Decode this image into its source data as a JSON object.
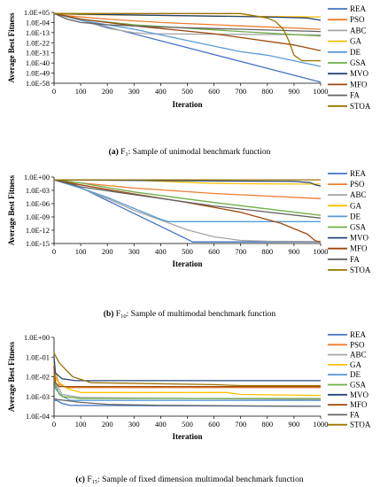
{
  "legend_series": [
    "REA",
    "PSO",
    "ABC",
    "GA",
    "DE",
    "GSA",
    "MVO",
    "MFO",
    "FA",
    "STOA"
  ],
  "colors": {
    "REA": "#4472c4",
    "PSO": "#ed7d31",
    "ABC": "#a5a5a5",
    "GA": "#ffc000",
    "DE": "#5b9bd5",
    "GSA": "#70ad47",
    "MVO": "#264478",
    "MFO": "#9e480e",
    "FA": "#636363",
    "STOA": "#997300"
  },
  "captions": [
    {
      "prefix": "(a)",
      "func": "F",
      "sub": "1",
      "text": ": Sample of unimodal benchmark function"
    },
    {
      "prefix": "(b)",
      "func": "F",
      "sub": "10",
      "text": ": Sample of multimodal benchmark function"
    },
    {
      "prefix": "(c)",
      "func": "F",
      "sub": "15",
      "text": ": Sample of fixed dimension multimodal benchmark function"
    }
  ],
  "chart_data": [
    {
      "type": "line",
      "xlabel": "Iteration",
      "ylabel": "Average Best Fitness",
      "yscale": "log",
      "xlim": [
        0,
        1000
      ],
      "ylim_exp": [
        -58,
        5
      ],
      "xticks": [
        "0",
        "100",
        "200",
        "300",
        "400",
        "500",
        "600",
        "700",
        "800",
        "900",
        "1000"
      ],
      "yticks": [
        "1.0E+05",
        "1.0E-04",
        "1.0E-13",
        "1.0E-22",
        "1.0E-31",
        "1.0E-40",
        "1.0E-49",
        "1.0E-58"
      ],
      "series": [
        {
          "name": "REA",
          "x": [
            0,
            20,
            1000
          ],
          "log10_y": [
            4,
            3,
            -57
          ]
        },
        {
          "name": "PSO",
          "x": [
            0,
            50,
            200,
            400,
            700,
            1000
          ],
          "log10_y": [
            4,
            2,
            -1,
            -4,
            -7,
            -10
          ]
        },
        {
          "name": "ABC",
          "x": [
            0,
            100,
            200,
            300,
            350,
            1000
          ],
          "log10_y": [
            4,
            -2,
            -9,
            -13,
            -14,
            -15
          ]
        },
        {
          "name": "GA",
          "x": [
            0,
            100,
            500,
            1000
          ],
          "log10_y": [
            4,
            3,
            2,
            1
          ]
        },
        {
          "name": "DE",
          "x": [
            0,
            100,
            300,
            500,
            600,
            700,
            800,
            900,
            1000
          ],
          "log10_y": [
            4,
            -2,
            -10,
            -20,
            -25,
            -30,
            -33,
            -38,
            -43
          ]
        },
        {
          "name": "GSA",
          "x": [
            0,
            100,
            300,
            500,
            700,
            1000
          ],
          "log10_y": [
            4,
            -1,
            -6,
            -9,
            -12,
            -16
          ]
        },
        {
          "name": "MVO",
          "x": [
            0,
            200,
            500,
            800,
            950,
            1000
          ],
          "log10_y": [
            4,
            3,
            2,
            1,
            0,
            -2
          ]
        },
        {
          "name": "MFO",
          "x": [
            0,
            100,
            300,
            600,
            900,
            1000
          ],
          "log10_y": [
            4,
            -1,
            -7,
            -14,
            -24,
            -29
          ]
        },
        {
          "name": "FA",
          "x": [
            0,
            50,
            100,
            200,
            400,
            700,
            1000
          ],
          "log10_y": [
            4,
            -1,
            -4,
            -6,
            -8,
            -10,
            -12
          ]
        },
        {
          "name": "STOA",
          "x": [
            0,
            700,
            800,
            830,
            860,
            880,
            900,
            930,
            1000
          ],
          "log10_y": [
            4,
            4,
            0,
            -3,
            -10,
            -20,
            -33,
            -38,
            -38
          ]
        }
      ]
    },
    {
      "type": "line",
      "xlabel": "Iteration",
      "ylabel": "Average Best Fitness",
      "yscale": "log",
      "xlim": [
        0,
        1000
      ],
      "ylim_exp": [
        -15,
        2
      ],
      "xticks": [
        "0",
        "100",
        "200",
        "300",
        "400",
        "500",
        "600",
        "700",
        "800",
        "900",
        "1000"
      ],
      "yticks": [
        "1.0E+00",
        "1.0E-03",
        "1.0E-06",
        "1.0E-09",
        "1.0E-12",
        "1.0E-15"
      ],
      "series": [
        {
          "name": "REA",
          "x": [
            0,
            40,
            520,
            1000
          ],
          "log10_y": [
            1.3,
            1.3,
            -14.6,
            -14.6
          ]
        },
        {
          "name": "PSO",
          "x": [
            0,
            100,
            300,
            600,
            1000
          ],
          "log10_y": [
            1.3,
            0.5,
            -0.8,
            -2.2,
            -3.5
          ]
        },
        {
          "name": "ABC",
          "x": [
            0,
            100,
            200,
            300,
            400,
            500,
            600,
            700,
            800,
            1000
          ],
          "log10_y": [
            1.3,
            -0.8,
            -3.5,
            -6.5,
            -9,
            -11.5,
            -13.3,
            -14.2,
            -14.4,
            -14.5
          ]
        },
        {
          "name": "GA",
          "x": [
            0,
            300,
            550,
            700,
            950,
            1000
          ],
          "log10_y": [
            1.3,
            1.2,
            0.5,
            0.3,
            0.2,
            0.2
          ]
        },
        {
          "name": "DE",
          "x": [
            0,
            100,
            200,
            300,
            400,
            430,
            1000
          ],
          "log10_y": [
            1.3,
            -0.8,
            -3.2,
            -6,
            -8.8,
            -9.4,
            -9.4
          ]
        },
        {
          "name": "GSA",
          "x": [
            0,
            100,
            300,
            600,
            1000
          ],
          "log10_y": [
            1.3,
            0.5,
            -1.8,
            -4.5,
            -7.8
          ]
        },
        {
          "name": "MVO",
          "x": [
            0,
            200,
            600,
            900,
            960,
            980,
            1000
          ],
          "log10_y": [
            1.3,
            1.2,
            1,
            0.9,
            0.6,
            0,
            -0.3
          ]
        },
        {
          "name": "MFO",
          "x": [
            0,
            100,
            300,
            500,
            700,
            850,
            950,
            980,
            1000
          ],
          "log10_y": [
            1.3,
            0,
            -2.3,
            -4.5,
            -7,
            -9.8,
            -12.6,
            -14.3,
            -14.6
          ]
        },
        {
          "name": "FA",
          "x": [
            0,
            100,
            300,
            600,
            1000
          ],
          "log10_y": [
            1.3,
            -0.5,
            -2.5,
            -5.4,
            -8.5
          ]
        },
        {
          "name": "STOA",
          "x": [
            0,
            1000
          ],
          "log10_y": [
            1.3,
            1.3
          ]
        }
      ]
    },
    {
      "type": "line",
      "xlabel": "Iteration",
      "ylabel": "Average Best Fitness",
      "yscale": "log",
      "xlim": [
        0,
        1000
      ],
      "ylim_exp": [
        -4,
        0
      ],
      "xticks": [
        "0",
        "100",
        "200",
        "300",
        "400",
        "500",
        "600",
        "700",
        "800",
        "900",
        "1000"
      ],
      "yticks": [
        "1.0E+00",
        "1.0E-01",
        "1.0E-02",
        "1.0E-03",
        "1.0E-04"
      ],
      "series": [
        {
          "name": "REA",
          "x": [
            0,
            10,
            30,
            60,
            1000
          ],
          "log10_y": [
            -3.2,
            -3.2,
            -3.35,
            -3.45,
            -3.5
          ]
        },
        {
          "name": "PSO",
          "x": [
            0,
            5,
            20,
            50,
            1000
          ],
          "log10_y": [
            -1,
            -1.8,
            -2.4,
            -2.55,
            -2.55
          ]
        },
        {
          "name": "ABC",
          "x": [
            0,
            5,
            30,
            100,
            500,
            1000
          ],
          "log10_y": [
            -1.5,
            -2.3,
            -2.9,
            -3.05,
            -3.1,
            -3.15
          ]
        },
        {
          "name": "GA",
          "x": [
            0,
            10,
            50,
            100,
            650,
            700,
            1000
          ],
          "log10_y": [
            -1.3,
            -2.2,
            -2.6,
            -2.8,
            -2.8,
            -2.9,
            -2.95
          ]
        },
        {
          "name": "DE",
          "x": [
            0,
            5,
            20,
            60,
            1000
          ],
          "log10_y": [
            -1.5,
            -2.4,
            -2.9,
            -3.2,
            -3.2
          ]
        },
        {
          "name": "GSA",
          "x": [
            0,
            5,
            30,
            100,
            1000
          ],
          "log10_y": [
            -1.8,
            -2.6,
            -3,
            -3.1,
            -3.1
          ]
        },
        {
          "name": "MVO",
          "x": [
            0,
            5,
            30,
            80,
            1000
          ],
          "log10_y": [
            -1,
            -1.8,
            -2.1,
            -2.2,
            -2.2
          ]
        },
        {
          "name": "MFO",
          "x": [
            0,
            5,
            20,
            100,
            1000
          ],
          "log10_y": [
            -1.5,
            -2.3,
            -2.5,
            -2.5,
            -2.5
          ]
        },
        {
          "name": "FA",
          "x": [
            0,
            10,
            100,
            200,
            400,
            1000
          ],
          "log10_y": [
            -3.1,
            -3.15,
            -3.3,
            -3.4,
            -3.45,
            -3.5
          ]
        },
        {
          "name": "STOA",
          "x": [
            0,
            20,
            70,
            140,
            600,
            700,
            1000
          ],
          "log10_y": [
            -0.8,
            -1.3,
            -2,
            -2.3,
            -2.4,
            -2.45,
            -2.45
          ]
        }
      ]
    }
  ]
}
